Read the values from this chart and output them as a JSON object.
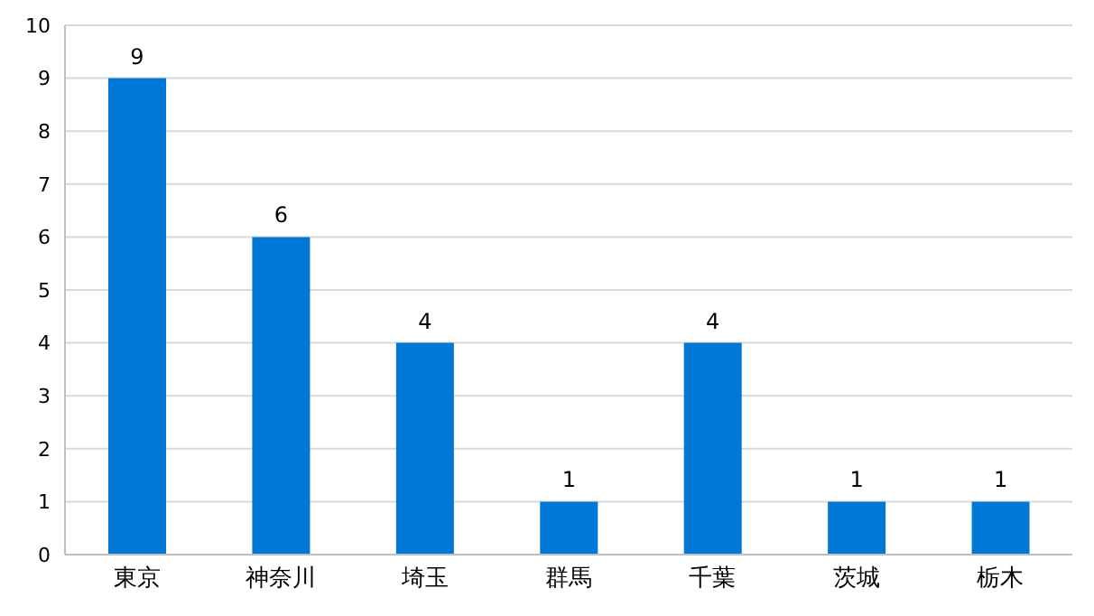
{
  "chart_data": {
    "type": "bar",
    "categories": [
      "東京",
      "神奈川",
      "埼玉",
      "群馬",
      "千葉",
      "茨城",
      "栃木"
    ],
    "values": [
      9,
      6,
      4,
      1,
      4,
      1,
      1
    ],
    "color": "#0078d7",
    "ylim": [
      0,
      10
    ],
    "yticks": [
      0,
      1,
      2,
      3,
      4,
      5,
      6,
      7,
      8,
      9,
      10
    ],
    "grid": "y",
    "data_labels": true
  }
}
